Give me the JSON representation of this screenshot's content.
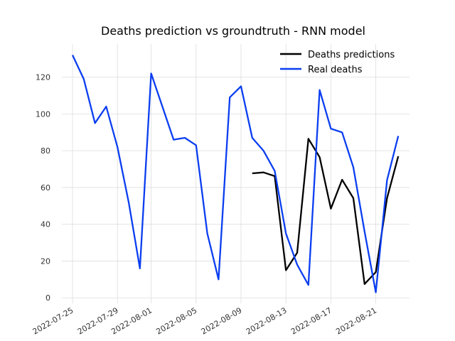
{
  "chart_data": {
    "type": "line",
    "title": "Deaths prediction vs groundtruth - RNN model",
    "xlabel": "",
    "ylabel": "",
    "x_type": "date",
    "xlim": [
      "2022-07-25",
      "2022-08-24"
    ],
    "ylim": [
      -3,
      138
    ],
    "x_ticks": [
      "2022-07-25",
      "2022-07-29",
      "2022-08-01",
      "2022-08-05",
      "2022-08-09",
      "2022-08-13",
      "2022-08-17",
      "2022-08-21"
    ],
    "y_ticks": [
      0,
      20,
      40,
      60,
      80,
      100,
      120
    ],
    "grid": true,
    "legend_position": "top-right",
    "series": [
      {
        "name": "Deaths predictions",
        "color": "#000000",
        "points": [
          {
            "x": "2022-08-10",
            "y": 67.7
          },
          {
            "x": "2022-08-11",
            "y": 68.2
          },
          {
            "x": "2022-08-12",
            "y": 66.2
          },
          {
            "x": "2022-08-13",
            "y": 15.0
          },
          {
            "x": "2022-08-14",
            "y": 24.5
          },
          {
            "x": "2022-08-15",
            "y": 86.5
          },
          {
            "x": "2022-08-16",
            "y": 76.5
          },
          {
            "x": "2022-08-17",
            "y": 48.5
          },
          {
            "x": "2022-08-18",
            "y": 64.2
          },
          {
            "x": "2022-08-19",
            "y": 54.2
          },
          {
            "x": "2022-08-20",
            "y": 7.5
          },
          {
            "x": "2022-08-21",
            "y": 14.0
          },
          {
            "x": "2022-08-22",
            "y": 54.2
          },
          {
            "x": "2022-08-23",
            "y": 77.0
          }
        ]
      },
      {
        "name": "Real deaths",
        "color": "#0a3ef0",
        "points": [
          {
            "x": "2022-07-25",
            "y": 132
          },
          {
            "x": "2022-07-26",
            "y": 119
          },
          {
            "x": "2022-07-27",
            "y": 95
          },
          {
            "x": "2022-07-28",
            "y": 104
          },
          {
            "x": "2022-07-29",
            "y": 82
          },
          {
            "x": "2022-07-30",
            "y": 52
          },
          {
            "x": "2022-07-31",
            "y": 16
          },
          {
            "x": "2022-08-01",
            "y": 122
          },
          {
            "x": "2022-08-02",
            "y": 104
          },
          {
            "x": "2022-08-03",
            "y": 86
          },
          {
            "x": "2022-08-04",
            "y": 87
          },
          {
            "x": "2022-08-05",
            "y": 83
          },
          {
            "x": "2022-08-06",
            "y": 35
          },
          {
            "x": "2022-08-07",
            "y": 10
          },
          {
            "x": "2022-08-08",
            "y": 109
          },
          {
            "x": "2022-08-09",
            "y": 115
          },
          {
            "x": "2022-08-10",
            "y": 87
          },
          {
            "x": "2022-08-11",
            "y": 80
          },
          {
            "x": "2022-08-12",
            "y": 69
          },
          {
            "x": "2022-08-13",
            "y": 35
          },
          {
            "x": "2022-08-14",
            "y": 18
          },
          {
            "x": "2022-08-15",
            "y": 7
          },
          {
            "x": "2022-08-16",
            "y": 113
          },
          {
            "x": "2022-08-17",
            "y": 92
          },
          {
            "x": "2022-08-18",
            "y": 90
          },
          {
            "x": "2022-08-19",
            "y": 71
          },
          {
            "x": "2022-08-20",
            "y": 36
          },
          {
            "x": "2022-08-21",
            "y": 3
          },
          {
            "x": "2022-08-22",
            "y": 64
          },
          {
            "x": "2022-08-23",
            "y": 88
          }
        ]
      }
    ]
  }
}
